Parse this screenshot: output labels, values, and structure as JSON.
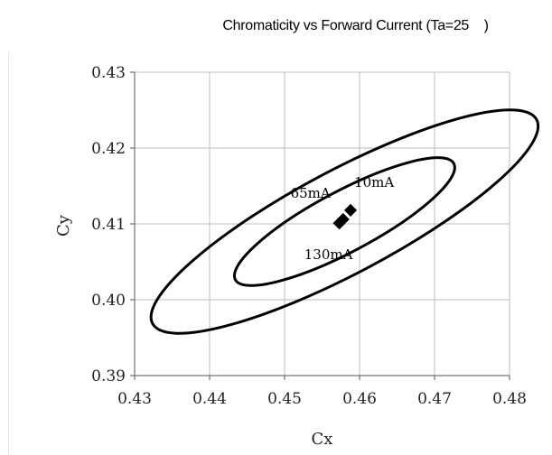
{
  "chart_data": {
    "type": "scatter",
    "title": "Chromaticity vs Forward Current (Ta=25    )",
    "xlabel": "Cx",
    "ylabel": "Cy",
    "xlim": [
      0.43,
      0.48
    ],
    "ylim": [
      0.39,
      0.43
    ],
    "x_ticks": [
      "0.43",
      "0.44",
      "0.45",
      "0.46",
      "0.47",
      "0.48"
    ],
    "y_ticks": [
      "0.39",
      "0.40",
      "0.41",
      "0.42",
      "0.43"
    ],
    "grid": true,
    "series": [
      {
        "points": [
          {
            "x": 0.4588,
            "y": 0.4118,
            "label": "10mA"
          },
          {
            "x": 0.4578,
            "y": 0.4106,
            "label": "65mA"
          },
          {
            "x": 0.4573,
            "y": 0.4101,
            "label": "130mA"
          }
        ]
      }
    ],
    "ellipses": [
      {
        "cx": 0.458,
        "cy": 0.4103,
        "rx": 0.0165,
        "ry": 0.004,
        "angle_deg": -28
      },
      {
        "cx": 0.458,
        "cy": 0.4103,
        "rx": 0.029,
        "ry": 0.0068,
        "angle_deg": -28
      }
    ]
  }
}
